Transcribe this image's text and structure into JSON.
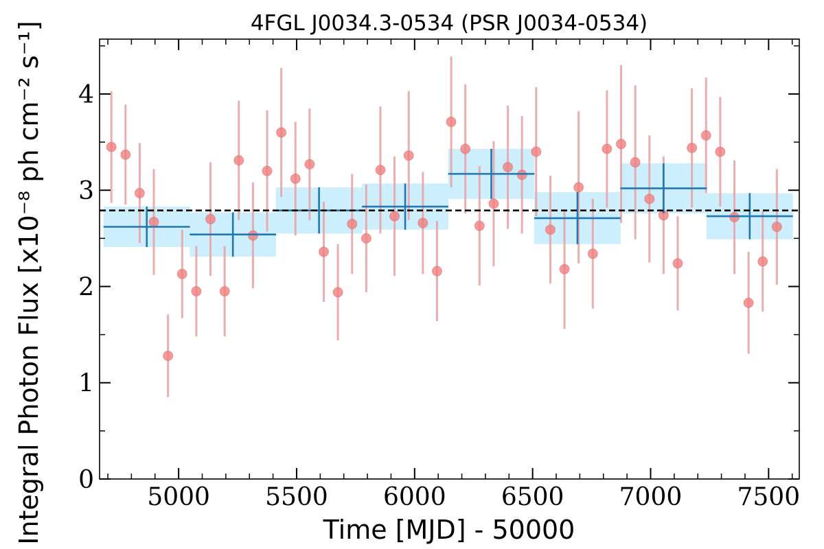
{
  "chart_data": {
    "type": "scatter",
    "title": "4FGL J0034.3-0534 (PSR J0034-0534)",
    "xlabel": "Time [MJD] - 50000",
    "ylabel": "Integral Photon Flux [x10⁻⁸ ph cm⁻² s⁻¹]",
    "xlim": [
      4665,
      7630
    ],
    "ylim": [
      0,
      4.57
    ],
    "xticks": [
      5000,
      5500,
      6000,
      6500,
      7000,
      7500
    ],
    "yticks": [
      0,
      1,
      2,
      3,
      4
    ],
    "mean_flux": 2.79,
    "colors": {
      "points": "#f08080",
      "errorbars": "#e8a0a0",
      "bins": "#1f77b4",
      "band": "#cdeefd",
      "mean_line": "#000000"
    },
    "series": [
      {
        "kind": "short_bins",
        "x": [
          4715,
          4775,
          4835,
          4895,
          4955,
          5015,
          5075,
          5135,
          5195,
          5255,
          5315,
          5375,
          5435,
          5495,
          5555,
          5615,
          5675,
          5735,
          5795,
          5855,
          5915,
          5975,
          6035,
          6095,
          6155,
          6215,
          6275,
          6335,
          6395,
          6455,
          6515,
          6575,
          6635,
          6695,
          6755,
          6815,
          6875,
          6935,
          6995,
          7055,
          7115,
          7175,
          7235,
          7295,
          7355,
          7415,
          7475,
          7535
        ],
        "y": [
          3.45,
          3.37,
          2.97,
          2.67,
          1.28,
          2.13,
          1.95,
          2.7,
          1.95,
          3.31,
          2.53,
          3.2,
          3.6,
          3.12,
          3.27,
          2.36,
          1.94,
          2.65,
          2.5,
          3.21,
          2.73,
          3.36,
          2.66,
          2.16,
          3.71,
          3.43,
          2.63,
          2.86,
          3.24,
          3.16,
          3.4,
          2.59,
          2.18,
          3.03,
          2.34,
          3.43,
          3.48,
          3.29,
          2.91,
          2.74,
          2.24,
          3.44,
          3.57,
          3.4,
          2.72,
          1.83,
          2.26,
          2.62
        ],
        "yerr": [
          0.58,
          0.52,
          0.52,
          0.55,
          0.43,
          0.46,
          0.47,
          0.59,
          0.47,
          0.62,
          0.55,
          0.63,
          0.67,
          0.59,
          0.58,
          0.52,
          0.5,
          0.52,
          0.56,
          0.66,
          0.62,
          0.67,
          0.53,
          0.52,
          0.68,
          0.67,
          0.62,
          0.65,
          0.64,
          0.61,
          0.67,
          0.56,
          0.62,
          0.79,
          0.57,
          0.61,
          0.82,
          0.8,
          0.66,
          0.61,
          0.49,
          0.62,
          0.6,
          0.57,
          0.59,
          0.53,
          0.52,
          0.6
        ]
      },
      {
        "kind": "long_bins",
        "x": [
          4865,
          5230,
          5595,
          5960,
          6325,
          6690,
          7055,
          7420
        ],
        "xerr": 183,
        "y": [
          2.62,
          2.54,
          2.79,
          2.83,
          3.17,
          2.71,
          3.02,
          2.73
        ],
        "yerr": [
          0.21,
          0.23,
          0.24,
          0.24,
          0.26,
          0.27,
          0.26,
          0.24
        ]
      }
    ]
  }
}
